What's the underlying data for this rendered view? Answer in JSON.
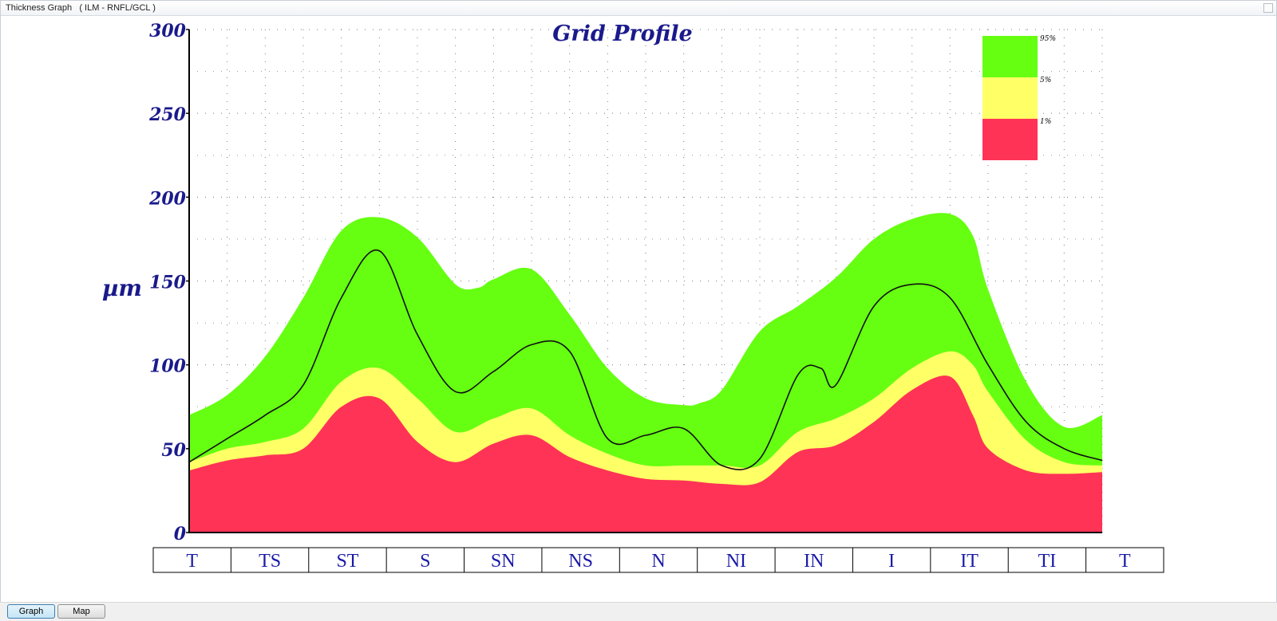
{
  "window": {
    "title": "Thickness Graph   ( ILM - RNFL/GCL )"
  },
  "tabs": [
    {
      "label": "Graph",
      "active": true
    },
    {
      "label": "Map",
      "active": false
    }
  ],
  "colors": {
    "normal_green": "#66ff11",
    "borderline_yellow": "#ffff66",
    "outside_red": "#ff3355",
    "axis_text": "#1a1a8c",
    "sector_text": "#1a1aa8",
    "measured_line": "#111111"
  },
  "chart_data": {
    "type": "area",
    "title": "Grid Profile",
    "ylabel": "µm",
    "xlabel": "",
    "ylim": [
      0,
      300
    ],
    "xlim": [
      0,
      12
    ],
    "yticks": [
      0,
      50,
      100,
      150,
      200,
      250,
      300
    ],
    "grid": true,
    "legend_position": "top-right",
    "legend": [
      {
        "label": "95%",
        "color": "#66ff11"
      },
      {
        "label": "5%",
        "color": "#ffff66"
      },
      {
        "label": "1%",
        "color": "#ff3355"
      }
    ],
    "sectors": [
      "T",
      "TS",
      "ST",
      "S",
      "SN",
      "NS",
      "N",
      "NI",
      "IN",
      "I",
      "IT",
      "TI",
      "T"
    ],
    "bands": {
      "p95": {
        "x": [
          0,
          0.5,
          1,
          1.5,
          2,
          2.5,
          3,
          3.5,
          3.8,
          4,
          4.5,
          5,
          5.5,
          6,
          6.5,
          6.7,
          7,
          7.5,
          8,
          8.5,
          9,
          9.5,
          10,
          10.3,
          10.5,
          11,
          11.5,
          12
        ],
        "y": [
          70,
          82,
          105,
          140,
          180,
          188,
          176,
          148,
          146,
          151,
          157,
          130,
          98,
          80,
          76,
          77,
          85,
          120,
          135,
          152,
          175,
          187,
          190,
          177,
          145,
          90,
          63,
          70
        ]
      },
      "p5": {
        "x": [
          0,
          0.5,
          1,
          1.5,
          2,
          2.5,
          3,
          3.5,
          4,
          4.5,
          5,
          5.5,
          6,
          6.5,
          7,
          7.5,
          8,
          8.5,
          9,
          9.5,
          10,
          10.3,
          10.5,
          11,
          11.5,
          12
        ],
        "y": [
          42,
          50,
          54,
          62,
          90,
          98,
          80,
          60,
          68,
          74,
          58,
          47,
          40,
          40,
          40,
          40,
          60,
          68,
          80,
          98,
          108,
          100,
          84,
          55,
          42,
          40
        ]
      },
      "p1": {
        "x": [
          0,
          0.5,
          1,
          1.5,
          2,
          2.5,
          3,
          3.5,
          4,
          4.5,
          5,
          5.5,
          6,
          6.5,
          7,
          7.5,
          8,
          8.5,
          9,
          9.5,
          10,
          10.3,
          10.5,
          11,
          11.5,
          12
        ],
        "y": [
          37,
          43,
          46,
          50,
          75,
          80,
          54,
          42,
          53,
          58,
          45,
          37,
          32,
          31,
          29,
          30,
          48,
          52,
          66,
          85,
          93,
          70,
          50,
          37,
          35,
          36
        ]
      }
    },
    "series": [
      {
        "x": [
          0,
          0.5,
          1,
          1.5,
          2,
          2.5,
          3,
          3.5,
          4,
          4.5,
          5,
          5.5,
          6,
          6.5,
          7,
          7.5,
          8,
          8.3,
          8.5,
          9,
          9.5,
          10,
          10.5,
          11,
          11.5,
          12
        ],
        "y": [
          42,
          56,
          70,
          88,
          140,
          168,
          118,
          84,
          96,
          112,
          108,
          56,
          58,
          62,
          40,
          44,
          94,
          98,
          88,
          135,
          148,
          140,
          100,
          66,
          50,
          43
        ]
      }
    ]
  }
}
